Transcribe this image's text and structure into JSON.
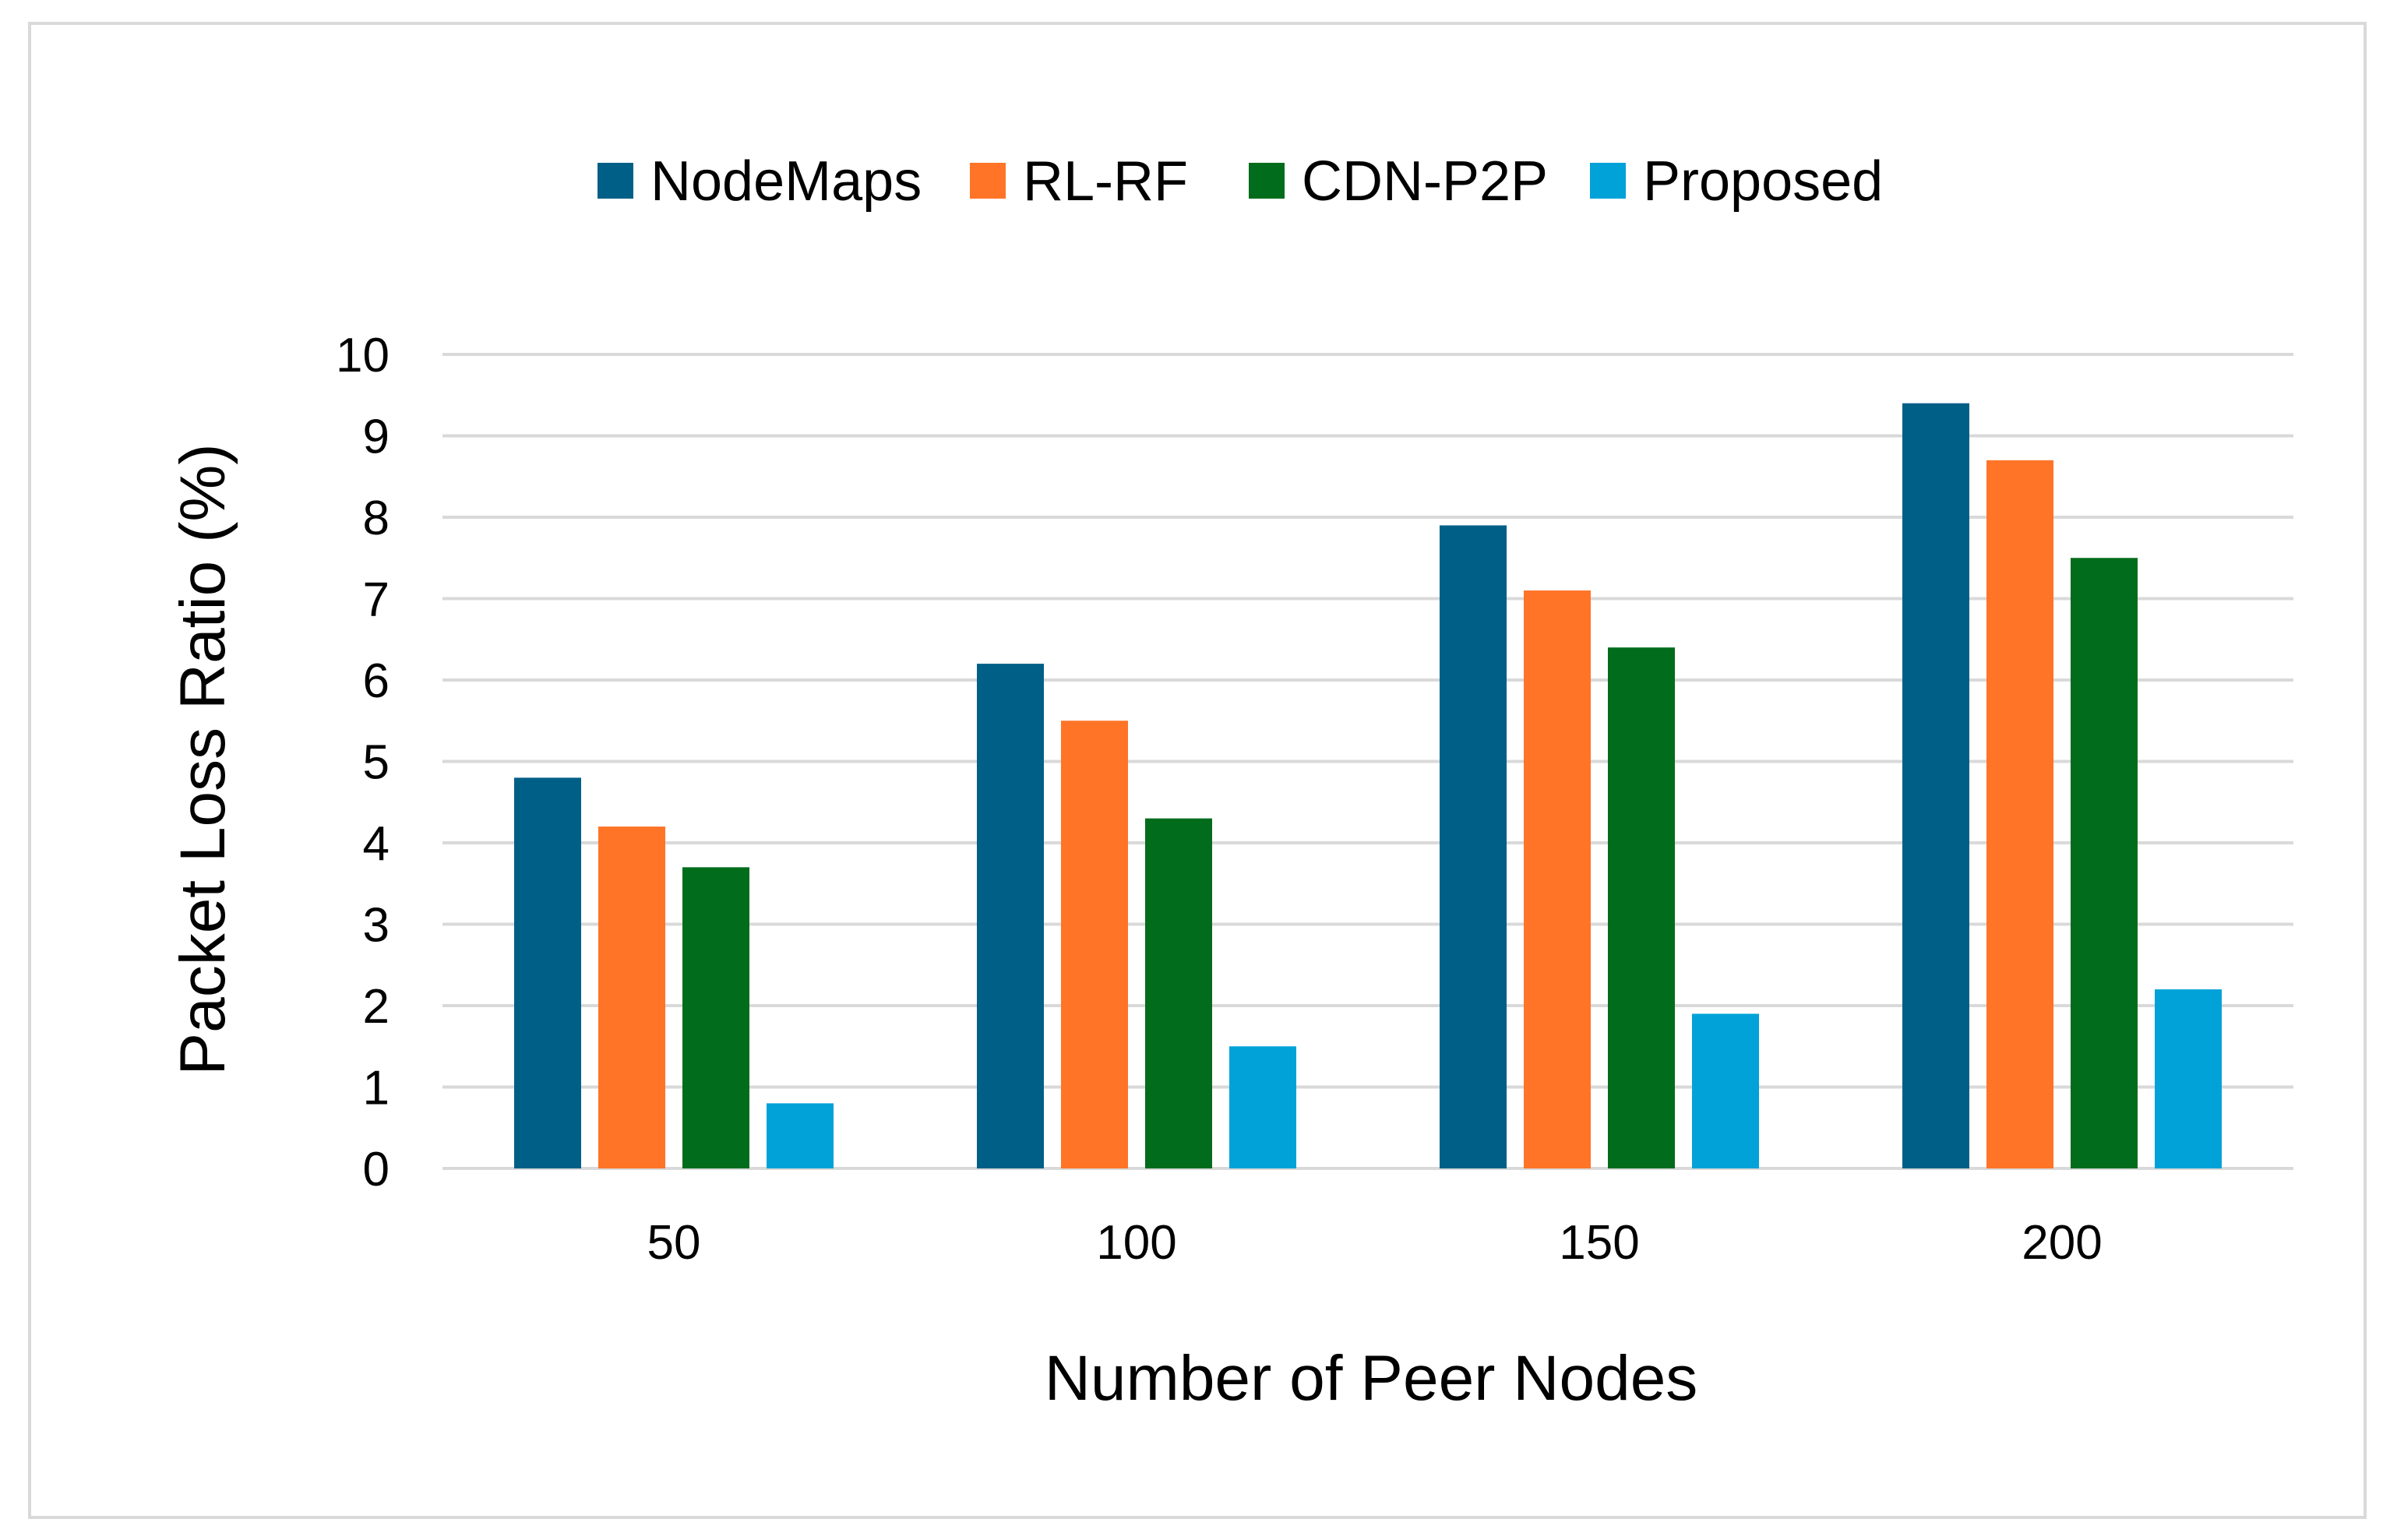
{
  "chart_data": {
    "type": "bar",
    "title": "",
    "xlabel": "Number of Peer Nodes",
    "ylabel": "Packet Loss Ratio (%)",
    "categories": [
      "50",
      "100",
      "150",
      "200"
    ],
    "ylim": [
      0,
      10
    ],
    "yticks": [
      "0",
      "1",
      "2",
      "3",
      "4",
      "5",
      "6",
      "7",
      "8",
      "9",
      "10"
    ],
    "grid": true,
    "legend_position": "top-center",
    "series": [
      {
        "name": "NodeMaps",
        "color": "#005f87",
        "values": [
          4.8,
          6.2,
          7.9,
          9.4
        ]
      },
      {
        "name": "RL-RF",
        "color": "#ff7427",
        "values": [
          4.2,
          5.5,
          7.1,
          8.7
        ]
      },
      {
        "name": "CDN-P2P",
        "color": "#006c1c",
        "values": [
          3.7,
          4.3,
          6.4,
          7.5
        ]
      },
      {
        "name": "Proposed",
        "color": "#00a2d8",
        "values": [
          0.8,
          1.5,
          1.9,
          2.2
        ]
      }
    ]
  }
}
